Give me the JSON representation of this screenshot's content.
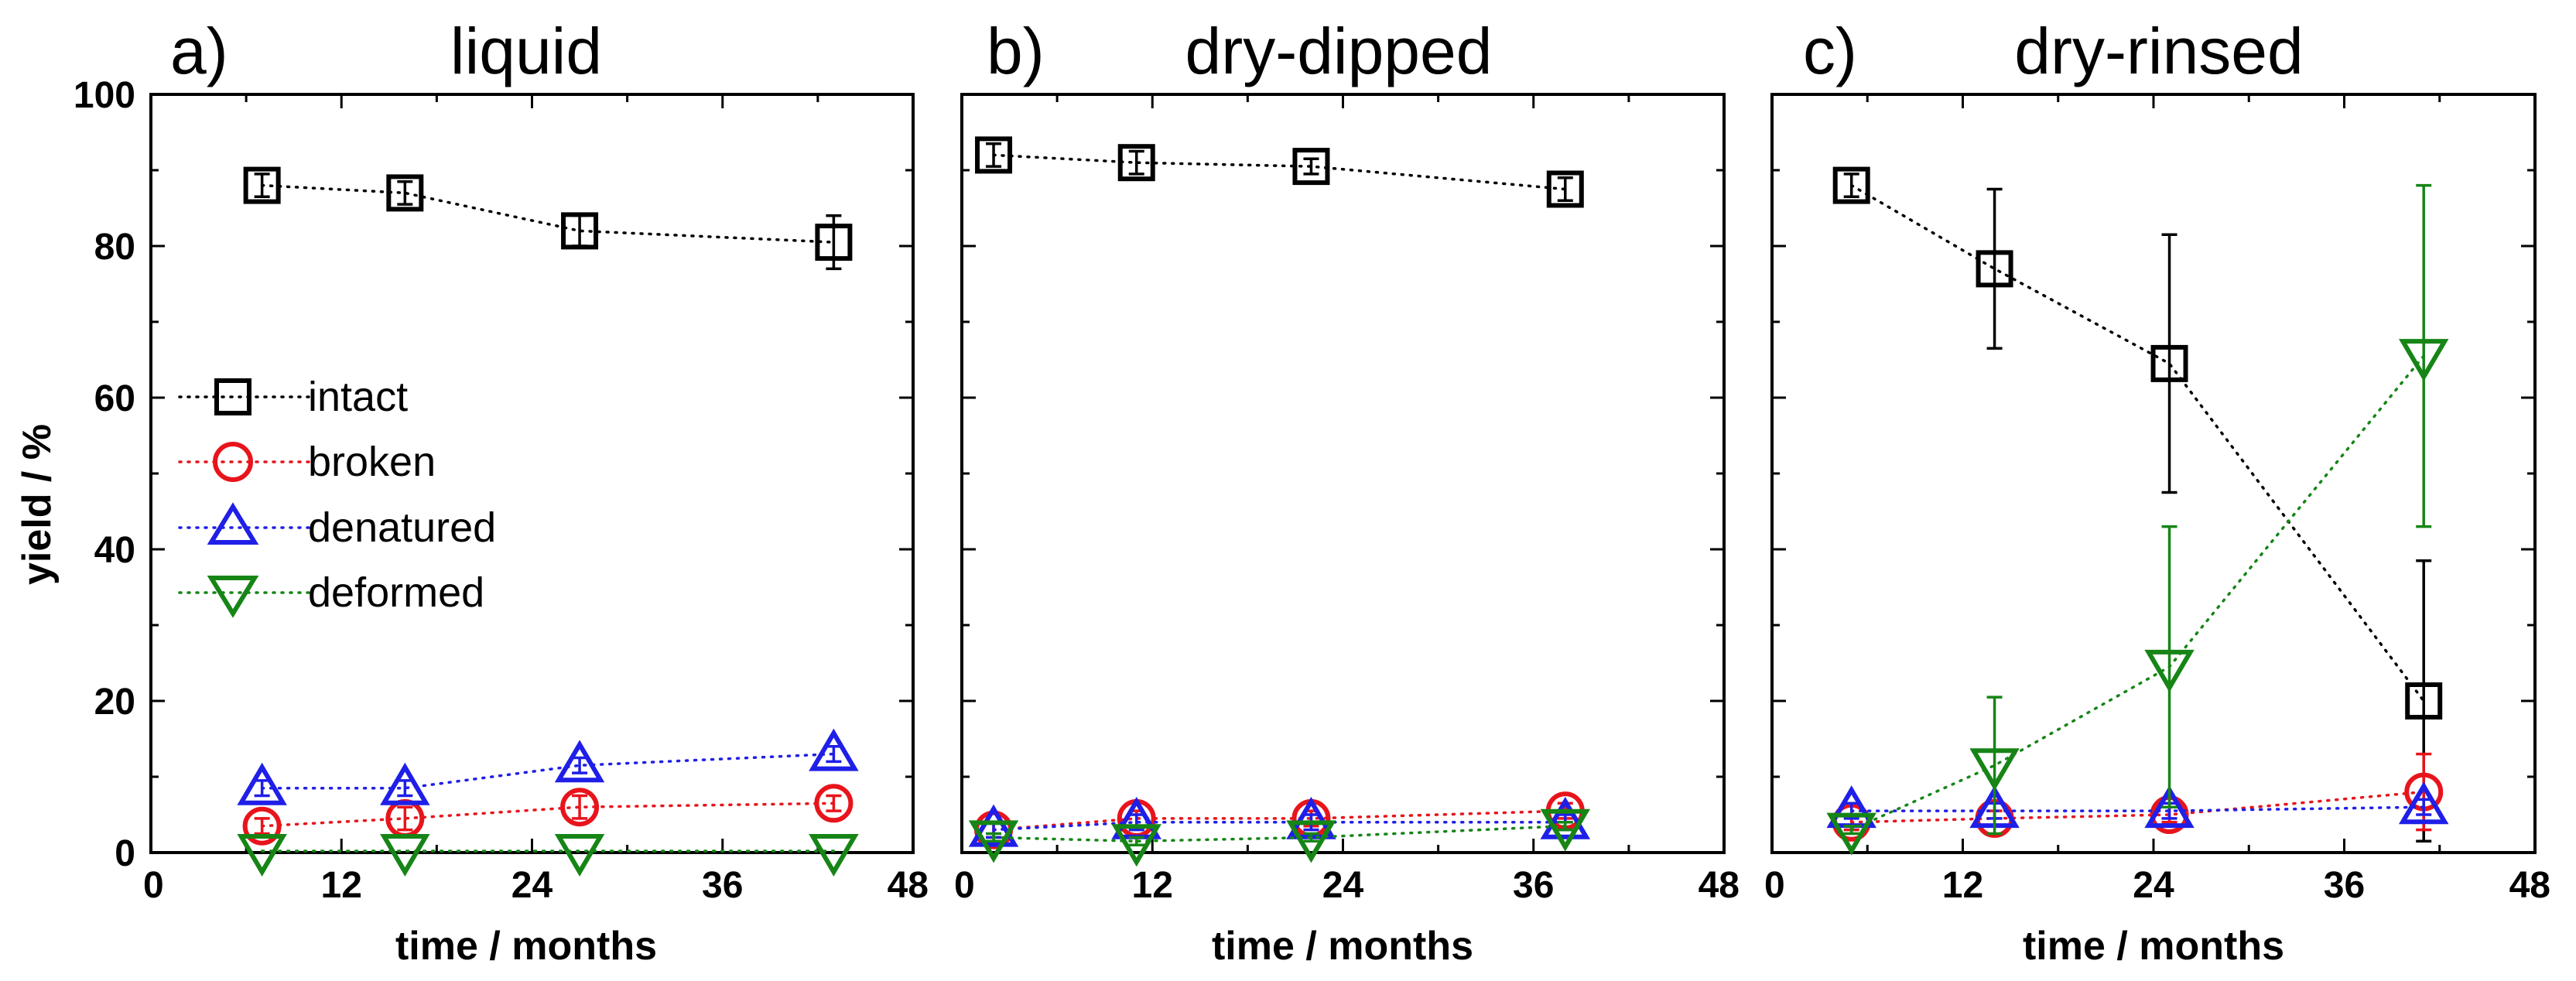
{
  "colors": {
    "intact": "#000000",
    "broken": "#e8141c",
    "denatured": "#1f1fe8",
    "deformed": "#168516"
  },
  "shared_axes": {
    "ylabel": "yield / %",
    "xlabel": "time / months",
    "xlim": [
      0,
      48
    ],
    "ylim": [
      0,
      100
    ],
    "x_ticks": [
      0,
      12,
      24,
      36,
      48
    ],
    "y_ticks": [
      0,
      20,
      40,
      60,
      80,
      100
    ]
  },
  "legend": {
    "placement": "left-middle of panel a",
    "entries": [
      {
        "key": "intact",
        "label": "intact",
        "marker": "square"
      },
      {
        "key": "broken",
        "label": "broken",
        "marker": "circle"
      },
      {
        "key": "denatured",
        "label": "denatured",
        "marker": "triangle-up"
      },
      {
        "key": "deformed",
        "label": "deformed",
        "marker": "triangle-down"
      }
    ]
  },
  "chart_data": [
    {
      "type": "scatter",
      "letter": "a)",
      "title": "liquid",
      "xlabel": "time / months",
      "ylabel": "yield / %",
      "xlim": [
        0,
        48
      ],
      "ylim": [
        0,
        100
      ],
      "x": [
        7,
        16,
        27,
        43
      ],
      "series": [
        {
          "key": "intact",
          "name": "intact",
          "values": [
            88,
            87,
            82,
            80.5
          ],
          "err_lo": [
            1.5,
            1.5,
            2,
            3.5
          ],
          "err_hi": [
            1.5,
            1.5,
            2,
            3.5
          ]
        },
        {
          "key": "broken",
          "name": "broken",
          "values": [
            3.5,
            4.5,
            6,
            6.5
          ],
          "err_lo": [
            1,
            1.5,
            1.5,
            1
          ],
          "err_hi": [
            1,
            1.5,
            1.5,
            1
          ]
        },
        {
          "key": "denatured",
          "name": "denatured",
          "values": [
            8.5,
            8.5,
            11.5,
            13
          ],
          "err_lo": [
            1,
            1,
            1,
            1
          ],
          "err_hi": [
            1,
            1,
            1,
            1
          ]
        },
        {
          "key": "deformed",
          "name": "deformed",
          "values": [
            0.2,
            0.2,
            0.2,
            0.2
          ],
          "err_lo": [
            0,
            0,
            0,
            0
          ],
          "err_hi": [
            0,
            0,
            0,
            0
          ]
        }
      ]
    },
    {
      "type": "scatter",
      "letter": "b)",
      "title": "dry-dipped",
      "xlabel": "time / months",
      "ylabel": "yield / %",
      "xlim": [
        0,
        48
      ],
      "ylim": [
        0,
        100
      ],
      "x": [
        2,
        11,
        22,
        38
      ],
      "series": [
        {
          "key": "intact",
          "name": "intact",
          "values": [
            92,
            91,
            90.5,
            87.5
          ],
          "err_lo": [
            1.5,
            1.5,
            1,
            1.5
          ],
          "err_hi": [
            1.5,
            1.5,
            1,
            1.5
          ]
        },
        {
          "key": "broken",
          "name": "broken",
          "values": [
            3,
            4.5,
            4.5,
            5.5
          ],
          "err_lo": [
            1,
            1,
            1,
            1
          ],
          "err_hi": [
            1,
            1,
            1,
            1
          ]
        },
        {
          "key": "denatured",
          "name": "denatured",
          "values": [
            3,
            4,
            4,
            4
          ],
          "err_lo": [
            1,
            1,
            1,
            1
          ],
          "err_hi": [
            1,
            1,
            1,
            1
          ]
        },
        {
          "key": "deformed",
          "name": "deformed",
          "values": [
            2,
            1.5,
            2,
            3.5
          ],
          "err_lo": [
            0.5,
            0.5,
            0.5,
            0.5
          ],
          "err_hi": [
            0.5,
            0.5,
            0.5,
            0.5
          ]
        }
      ]
    },
    {
      "type": "scatter",
      "letter": "c)",
      "title": "dry-rinsed",
      "xlabel": "time / months",
      "ylabel": "yield / %",
      "xlim": [
        0,
        48
      ],
      "ylim": [
        0,
        100
      ],
      "x": [
        5,
        14,
        25,
        41
      ],
      "series": [
        {
          "key": "intact",
          "name": "intact",
          "values": [
            88,
            77,
            64.5,
            20
          ],
          "err_lo": [
            1.5,
            10.5,
            17,
            18.5
          ],
          "err_hi": [
            1.5,
            10.5,
            17,
            18.5
          ]
        },
        {
          "key": "broken",
          "name": "broken",
          "values": [
            4,
            4.5,
            5,
            8
          ],
          "err_lo": [
            1,
            1,
            1,
            5
          ],
          "err_hi": [
            1,
            1,
            1,
            5
          ]
        },
        {
          "key": "denatured",
          "name": "denatured",
          "values": [
            5.5,
            5.5,
            5.5,
            6
          ],
          "err_lo": [
            1,
            1,
            1,
            1
          ],
          "err_hi": [
            1,
            1,
            1,
            1
          ]
        },
        {
          "key": "deformed",
          "name": "deformed",
          "values": [
            3,
            11.5,
            24.5,
            65.5
          ],
          "err_lo": [
            0.5,
            9,
            18.5,
            22.5
          ],
          "err_hi": [
            0.5,
            9,
            18.5,
            22.5
          ]
        }
      ]
    }
  ]
}
